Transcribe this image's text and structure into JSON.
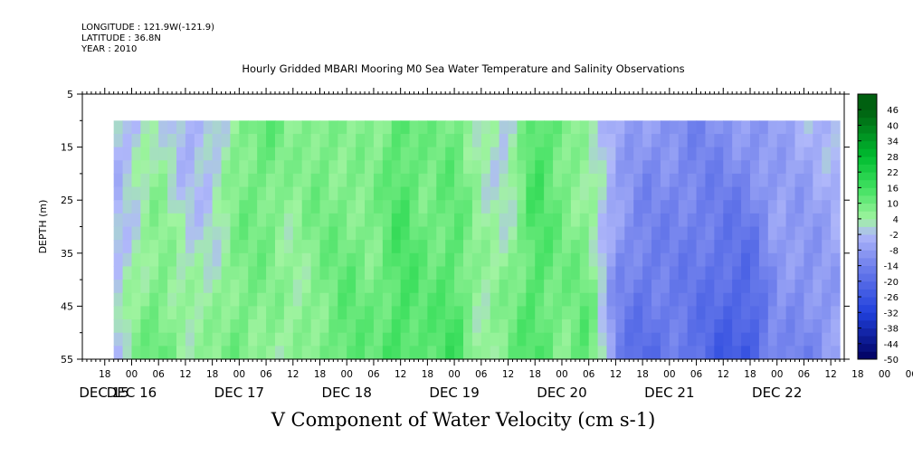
{
  "header": {
    "longitude": "LONGITUDE : 121.9W(-121.9)",
    "latitude": "LATITUDE : 36.8N",
    "year": "YEAR : 2010"
  },
  "chart_data": {
    "type": "heatmap",
    "title": "Hourly Gridded MBARI Mooring M0 Sea Water Temperature and Salinity Observations",
    "xlabel": "V Component of Water Velocity (cm s-1)",
    "ylabel": "DEPTH (m)",
    "ylim": [
      5,
      55
    ],
    "y_inverted": true,
    "y_ticks": [
      "5",
      "15",
      "25",
      "35",
      "45",
      "55"
    ],
    "data_depth_range": [
      10,
      55
    ],
    "x_hour_ticks": [
      "18",
      "00",
      "06",
      "12",
      "18",
      "00",
      "06",
      "12",
      "18",
      "00",
      "06",
      "12",
      "18",
      "00",
      "06",
      "12",
      "18",
      "00",
      "06",
      "12",
      "18",
      "00",
      "06",
      "12",
      "18",
      "00",
      "06",
      "12",
      "18",
      "00",
      "06",
      "12"
    ],
    "x_day_labels": [
      "DEC 15",
      "DEC 16",
      "DEC 17",
      "DEC 18",
      "DEC 19",
      "DEC 20",
      "DEC 21",
      "DEC 22"
    ],
    "x_range": [
      "2010-12-15 13:00",
      "2010-12-22 15:00"
    ],
    "data_time_range": [
      "2010-12-15 20:00",
      "2010-12-22 14:00"
    ],
    "colorbar": {
      "levels": [
        "46",
        "40",
        "34",
        "28",
        "22",
        "16",
        "10",
        "4",
        "-2",
        "-8",
        "-14",
        "-20",
        "-26",
        "-32",
        "-38",
        "-44",
        "-50"
      ],
      "min": -50,
      "max": 52,
      "step": 3
    },
    "time_profile": {
      "hours": [
        "2010-12-15 20:00",
        "2010-12-16 00:00",
        "2010-12-16 06:00",
        "2010-12-16 12:00",
        "2010-12-16 18:00",
        "2010-12-17 00:00",
        "2010-12-17 06:00",
        "2010-12-17 12:00",
        "2010-12-17 18:00",
        "2010-12-18 00:00",
        "2010-12-18 06:00",
        "2010-12-18 12:00",
        "2010-12-18 18:00",
        "2010-12-19 00:00",
        "2010-12-19 06:00",
        "2010-12-19 12:00",
        "2010-12-19 18:00",
        "2010-12-20 00:00",
        "2010-12-20 06:00",
        "2010-12-20 12:00",
        "2010-12-20 18:00",
        "2010-12-21 00:00",
        "2010-12-21 06:00",
        "2010-12-21 12:00",
        "2010-12-21 18:00",
        "2010-12-22 00:00",
        "2010-12-22 06:00",
        "2010-12-22 14:00"
      ],
      "v_shallow": [
        -3,
        -2,
        4,
        -4,
        -3,
        8,
        12,
        6,
        10,
        6,
        6,
        14,
        8,
        10,
        4,
        -2,
        16,
        10,
        2,
        -4,
        -8,
        -10,
        -12,
        -10,
        -8,
        -6,
        -4,
        -2
      ],
      "v_deep": [
        -2,
        6,
        12,
        6,
        6,
        10,
        6,
        4,
        8,
        14,
        10,
        16,
        12,
        16,
        4,
        10,
        14,
        8,
        14,
        -14,
        -20,
        -16,
        -18,
        -24,
        -26,
        -10,
        -14,
        -8
      ]
    }
  }
}
